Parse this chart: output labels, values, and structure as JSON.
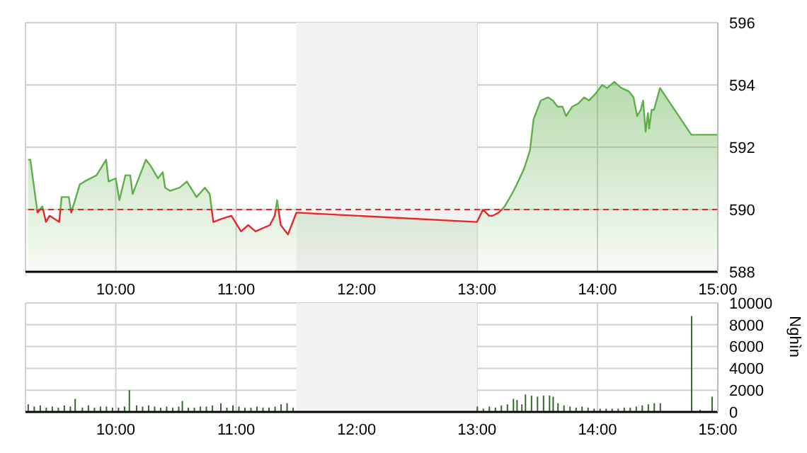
{
  "chart_data": [
    {
      "type": "area",
      "x": [
        9.27,
        9.29,
        9.35,
        9.39,
        9.42,
        9.45,
        9.53,
        9.55,
        9.61,
        9.63,
        9.67,
        9.7,
        9.74,
        9.84,
        9.92,
        9.94,
        10.0,
        10.03,
        10.08,
        10.12,
        10.14,
        10.25,
        10.29,
        10.35,
        10.39,
        10.41,
        10.45,
        10.53,
        10.59,
        10.67,
        10.74,
        10.78,
        10.81,
        10.88,
        10.96,
        11.04,
        11.1,
        11.16,
        11.28,
        11.32,
        11.34,
        11.37,
        11.43,
        11.49,
        11.5,
        13.0,
        13.05,
        13.1,
        13.13,
        13.18,
        13.23,
        13.29,
        13.33,
        13.39,
        13.44,
        13.47,
        13.5,
        13.53,
        13.59,
        13.63,
        13.67,
        13.71,
        13.74,
        13.79,
        13.84,
        13.89,
        13.93,
        13.98,
        14.04,
        14.08,
        14.14,
        14.2,
        14.26,
        14.3,
        14.33,
        14.36,
        14.38,
        14.4,
        14.42,
        14.43,
        14.45,
        14.47,
        14.52,
        14.78,
        15.0
      ],
      "series": [
        {
          "color": "#5fae4a",
          "values": [
            591.6,
            591.6,
            589.9,
            590.1,
            589.6,
            589.8,
            589.6,
            590.4,
            590.4,
            589.9,
            590.4,
            590.8,
            590.9,
            591.1,
            591.6,
            590.9,
            591.0,
            590.3,
            591.1,
            591.1,
            590.5,
            591.6,
            591.4,
            591.0,
            591.2,
            590.7,
            590.6,
            590.7,
            590.9,
            590.4,
            590.7,
            590.5,
            589.6,
            589.7,
            589.8,
            589.3,
            589.5,
            589.3,
            589.5,
            589.8,
            590.3,
            589.5,
            589.2,
            589.8,
            589.9,
            589.6,
            590.0,
            589.8,
            589.8,
            589.9,
            590.1,
            590.5,
            590.8,
            591.3,
            591.9,
            592.9,
            593.2,
            593.5,
            593.6,
            593.5,
            593.3,
            593.3,
            593.0,
            593.3,
            593.4,
            593.6,
            593.5,
            593.7,
            594.0,
            593.9,
            594.1,
            593.9,
            593.8,
            593.6,
            593.0,
            593.2,
            593.5,
            592.5,
            593.1,
            592.6,
            593.2,
            593.2,
            593.9,
            592.4,
            592.4
          ]
        }
      ],
      "xlim": [
        9.25,
        15
      ],
      "xticks": [
        {
          "value": 10,
          "label": "10:00"
        },
        {
          "value": 11,
          "label": "11:00"
        },
        {
          "value": 12,
          "label": "12:00"
        },
        {
          "value": 13,
          "label": "13:00"
        },
        {
          "value": 14,
          "label": "14:00"
        },
        {
          "value": 15,
          "label": "15:00"
        }
      ],
      "ylim": [
        588,
        596
      ],
      "yticks": [
        588,
        590,
        592,
        594,
        596
      ],
      "grid": true,
      "ref_lines": [
        {
          "axis": "y",
          "value": 590,
          "color": "#e8262a",
          "line_style": "dashed"
        }
      ],
      "bands": [
        {
          "axis": "x",
          "from": 11.5,
          "to": 13,
          "color": "#f2f2f2"
        }
      ]
    },
    {
      "type": "bar",
      "x": [
        9.27,
        9.32,
        9.37,
        9.42,
        9.47,
        9.52,
        9.57,
        9.62,
        9.66,
        9.72,
        9.77,
        9.82,
        9.87,
        9.92,
        9.97,
        10.02,
        10.07,
        10.11,
        10.17,
        10.22,
        10.27,
        10.32,
        10.37,
        10.42,
        10.47,
        10.52,
        10.55,
        10.6,
        10.65,
        10.7,
        10.75,
        10.8,
        10.87,
        10.92,
        10.97,
        11.02,
        11.07,
        11.12,
        11.17,
        11.22,
        11.27,
        11.32,
        11.37,
        11.42,
        11.47,
        13.0,
        13.05,
        13.1,
        13.15,
        13.2,
        13.25,
        13.3,
        13.33,
        13.37,
        13.4,
        13.45,
        13.5,
        13.55,
        13.6,
        13.63,
        13.67,
        13.72,
        13.77,
        13.82,
        13.87,
        13.92,
        13.97,
        14.02,
        14.07,
        14.12,
        14.17,
        14.22,
        14.27,
        14.32,
        14.37,
        14.42,
        14.47,
        14.52,
        14.78,
        14.85,
        14.95
      ],
      "values": [
        700,
        500,
        600,
        400,
        500,
        400,
        600,
        500,
        1200,
        400,
        600,
        400,
        500,
        500,
        400,
        400,
        500,
        2000,
        600,
        500,
        600,
        500,
        400,
        500,
        400,
        500,
        1000,
        400,
        400,
        500,
        500,
        600,
        800,
        400,
        600,
        500,
        400,
        400,
        500,
        400,
        400,
        500,
        700,
        800,
        400,
        500,
        300,
        500,
        400,
        600,
        700,
        1200,
        1100,
        700,
        1600,
        1500,
        1400,
        1500,
        1500,
        1400,
        800,
        600,
        500,
        400,
        500,
        400,
        300,
        300,
        300,
        300,
        300,
        400,
        400,
        500,
        600,
        700,
        800,
        800,
        8800,
        200,
        1400
      ],
      "color": "#336b2a",
      "xlim": [
        9.25,
        15
      ],
      "xticks": [
        {
          "value": 10,
          "label": "10:00"
        },
        {
          "value": 11,
          "label": "11:00"
        },
        {
          "value": 12,
          "label": "12:00"
        },
        {
          "value": 13,
          "label": "13:00"
        },
        {
          "value": 14,
          "label": "14:00"
        },
        {
          "value": 15,
          "label": "15:00"
        }
      ],
      "ylim": [
        0,
        10000
      ],
      "yticks": [
        0,
        2000,
        4000,
        6000,
        8000,
        10000
      ],
      "ylabel": "Nghìn",
      "grid": true,
      "bands": [
        {
          "axis": "x",
          "from": 11.5,
          "to": 13,
          "color": "#f2f2f2"
        }
      ]
    }
  ]
}
